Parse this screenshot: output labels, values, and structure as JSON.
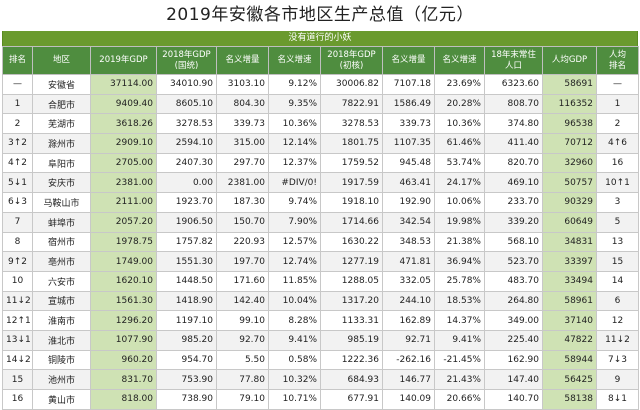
{
  "title": "2019年安徽各市地区生产总值（亿元）",
  "subtitle": "没有道行的小妖",
  "columns": [
    "排名",
    "地区",
    "2019年GDP",
    "2018年GDP\n(国统)",
    "名义增量",
    "名义增速",
    "2018年GDP\n(初核)",
    "名义增量",
    "名义增速",
    "18年末常住\n人口",
    "人均GDP",
    "人均\n排名"
  ],
  "rows": [
    [
      "—",
      "安徽省",
      "37114.00",
      "34010.90",
      "3103.10",
      "9.12%",
      "30006.82",
      "7107.18",
      "23.69%",
      "6323.60",
      "58691",
      "—"
    ],
    [
      "1",
      "合肥市",
      "9409.40",
      "8605.10",
      "804.30",
      "9.35%",
      "7822.91",
      "1586.49",
      "20.28%",
      "808.70",
      "116352",
      "1"
    ],
    [
      "2",
      "芜湖市",
      "3618.26",
      "3278.53",
      "339.73",
      "10.36%",
      "3278.53",
      "339.73",
      "10.36%",
      "374.80",
      "96538",
      "2"
    ],
    [
      "3↑2",
      "滁州市",
      "2909.10",
      "2594.10",
      "315.00",
      "12.14%",
      "1801.75",
      "1107.35",
      "61.46%",
      "411.40",
      "70712",
      "4↑6"
    ],
    [
      "4↑2",
      "阜阳市",
      "2705.00",
      "2407.30",
      "297.70",
      "12.37%",
      "1759.52",
      "945.48",
      "53.74%",
      "820.70",
      "32960",
      "16"
    ],
    [
      "5↓1",
      "安庆市",
      "2381.00",
      "0.00",
      "2381.00",
      "#DIV/0!",
      "1917.59",
      "463.41",
      "24.17%",
      "469.10",
      "50757",
      "10↑1"
    ],
    [
      "6↓3",
      "马鞍山市",
      "2111.00",
      "1923.70",
      "187.30",
      "9.74%",
      "1918.10",
      "192.90",
      "10.06%",
      "233.70",
      "90329",
      "3"
    ],
    [
      "7",
      "蚌埠市",
      "2057.20",
      "1906.50",
      "150.70",
      "7.90%",
      "1714.66",
      "342.54",
      "19.98%",
      "339.20",
      "60649",
      "5"
    ],
    [
      "8",
      "宿州市",
      "1978.75",
      "1757.82",
      "220.93",
      "12.57%",
      "1630.22",
      "348.53",
      "21.38%",
      "568.10",
      "34831",
      "13"
    ],
    [
      "9↑2",
      "亳州市",
      "1749.00",
      "1551.30",
      "197.70",
      "12.74%",
      "1277.19",
      "471.81",
      "36.94%",
      "523.70",
      "33397",
      "15"
    ],
    [
      "10",
      "六安市",
      "1620.10",
      "1448.50",
      "171.60",
      "11.85%",
      "1288.05",
      "332.05",
      "25.78%",
      "483.70",
      "33494",
      "14"
    ],
    [
      "11↓2",
      "宣城市",
      "1561.30",
      "1418.90",
      "142.40",
      "10.04%",
      "1317.20",
      "244.10",
      "18.53%",
      "264.80",
      "58961",
      "6"
    ],
    [
      "12↑1",
      "淮南市",
      "1296.20",
      "1197.10",
      "99.10",
      "8.28%",
      "1133.31",
      "162.89",
      "14.37%",
      "349.00",
      "37140",
      "12"
    ],
    [
      "13↓1",
      "淮北市",
      "1077.90",
      "985.20",
      "92.70",
      "9.41%",
      "985.19",
      "92.71",
      "9.41%",
      "225.40",
      "47822",
      "11↓2"
    ],
    [
      "14↓2",
      "铜陵市",
      "960.20",
      "954.70",
      "5.50",
      "0.58%",
      "1222.36",
      "-262.16",
      "-21.45%",
      "162.90",
      "58944",
      "7↓3"
    ],
    [
      "15",
      "池州市",
      "831.70",
      "753.90",
      "77.80",
      "10.32%",
      "684.93",
      "146.77",
      "21.43%",
      "147.40",
      "56425",
      "9"
    ],
    [
      "16",
      "黄山市",
      "818.00",
      "738.90",
      "79.10",
      "10.71%",
      "677.91",
      "140.09",
      "20.66%",
      "140.70",
      "58138",
      "8↓1"
    ]
  ]
}
